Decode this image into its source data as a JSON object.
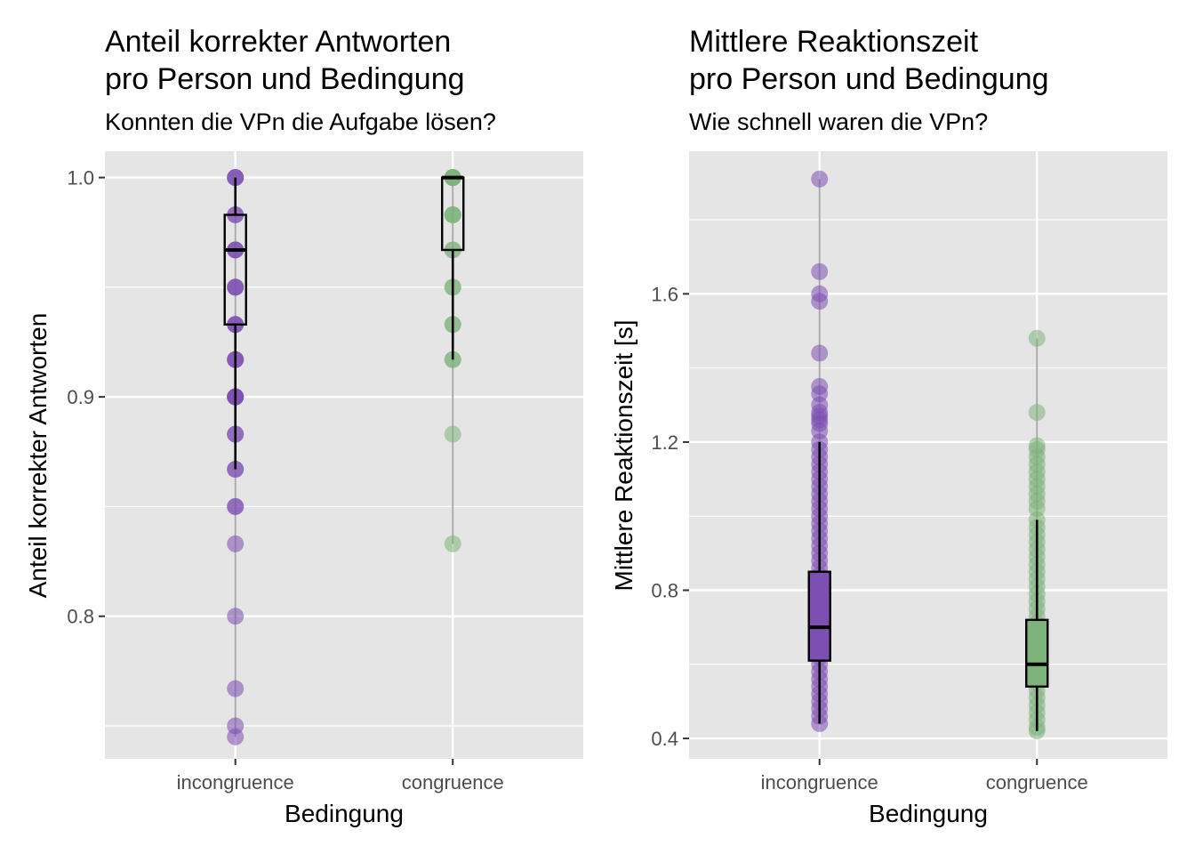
{
  "colors": {
    "incongruence": "#7e4fb3",
    "congruence": "#7db37a",
    "panel_bg": "#e5e5e5",
    "grid": "#ffffff"
  },
  "chart_data": [
    {
      "type": "box",
      "title_line1": "Anteil korrekter Antworten",
      "title_line2": "pro Person und Bedingung",
      "subtitle": "Konnten die VPn die Aufgabe lösen?",
      "xlabel": "Bedingung",
      "ylabel": "Anteil korrekter Antworten",
      "categories": [
        "incongruence",
        "congruence"
      ],
      "ylim": [
        0.735,
        1.012
      ],
      "yticks": [
        0.8,
        0.9,
        1.0
      ],
      "ytick_labels": [
        "0.8",
        "0.9",
        "1.0"
      ],
      "ygrid_minor": [
        0.75,
        0.85,
        0.95
      ],
      "boxes": [
        {
          "category": "incongruence",
          "q1": 0.933,
          "median": 0.967,
          "q3": 0.983,
          "whisker_low": 0.867,
          "whisker_high": 1.0,
          "filled": false,
          "points": [
            1.0,
            1.0,
            1.0,
            0.983,
            0.983,
            0.967,
            0.967,
            0.967,
            0.95,
            0.95,
            0.95,
            0.933,
            0.933,
            0.933,
            0.917,
            0.917,
            0.917,
            0.9,
            0.9,
            0.9,
            0.9,
            0.9,
            0.883,
            0.883,
            0.867,
            0.867,
            0.85,
            0.85,
            0.833,
            0.8,
            0.767,
            0.75,
            0.745
          ]
        },
        {
          "category": "congruence",
          "q1": 0.967,
          "median": 1.0,
          "q3": 1.0,
          "whisker_low": 0.917,
          "whisker_high": 1.0,
          "filled": false,
          "points": [
            1.0,
            1.0,
            1.0,
            1.0,
            1.0,
            1.0,
            0.983,
            0.983,
            0.983,
            0.967,
            0.967,
            0.95,
            0.95,
            0.933,
            0.933,
            0.917,
            0.917,
            0.883,
            0.833
          ]
        }
      ]
    },
    {
      "type": "box",
      "title_line1": "Mittlere Reaktionszeit",
      "title_line2": "pro Person und Bedingung",
      "subtitle": "Wie schnell waren die VPn?",
      "xlabel": "Bedingung",
      "ylabel": "Mittlere Reaktionszeit [s]",
      "categories": [
        "incongruence",
        "congruence"
      ],
      "ylim": [
        0.345,
        1.985
      ],
      "yticks": [
        0.4,
        0.8,
        1.2,
        1.6
      ],
      "ytick_labels": [
        "0.4",
        "0.8",
        "1.2",
        "1.6"
      ],
      "ygrid_minor": [
        0.6,
        1.0,
        1.4,
        1.8
      ],
      "boxes": [
        {
          "category": "incongruence",
          "q1": 0.61,
          "median": 0.7,
          "q3": 0.85,
          "whisker_low": 0.44,
          "whisker_high": 1.2,
          "filled": true,
          "points": [
            1.91,
            1.66,
            1.6,
            1.58,
            1.44,
            1.35,
            1.33,
            1.3,
            1.28,
            1.27,
            1.26,
            1.25,
            1.23,
            1.2,
            1.18,
            1.16,
            1.14,
            1.12,
            1.1,
            1.08,
            1.06,
            1.04,
            1.02,
            1.0,
            0.98,
            0.96,
            0.94,
            0.92,
            0.9,
            0.88,
            0.86,
            0.84,
            0.82,
            0.8,
            0.78,
            0.76,
            0.74,
            0.72,
            0.7,
            0.68,
            0.66,
            0.64,
            0.62,
            0.6,
            0.58,
            0.56,
            0.54,
            0.52,
            0.5,
            0.48,
            0.46,
            0.44
          ]
        },
        {
          "category": "congruence",
          "q1": 0.54,
          "median": 0.6,
          "q3": 0.72,
          "whisker_low": 0.42,
          "whisker_high": 0.99,
          "filled": true,
          "points": [
            1.48,
            1.28,
            1.19,
            1.18,
            1.16,
            1.14,
            1.12,
            1.1,
            1.08,
            1.06,
            1.04,
            1.02,
            0.99,
            0.97,
            0.95,
            0.93,
            0.91,
            0.89,
            0.87,
            0.85,
            0.83,
            0.81,
            0.79,
            0.77,
            0.75,
            0.73,
            0.71,
            0.69,
            0.67,
            0.65,
            0.63,
            0.61,
            0.59,
            0.57,
            0.55,
            0.53,
            0.51,
            0.49,
            0.47,
            0.45,
            0.43,
            0.42
          ]
        }
      ]
    }
  ]
}
